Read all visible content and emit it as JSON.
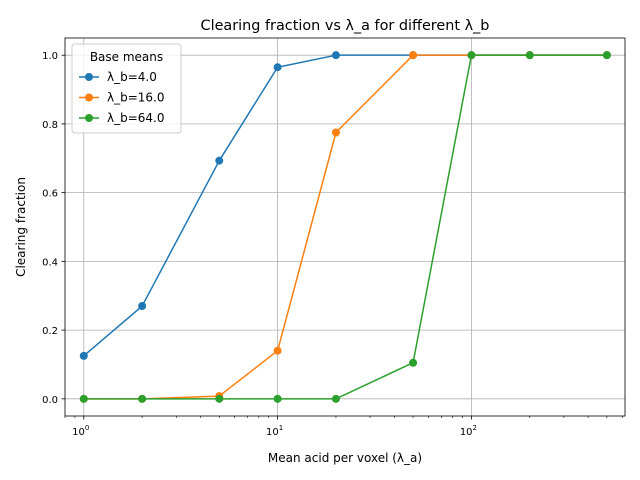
{
  "chart_data": {
    "type": "line",
    "title": "Clearing fraction vs λ_a for different λ_b",
    "xlabel": "Mean acid per voxel (λ_a)",
    "ylabel": "Clearing fraction",
    "xscale": "log",
    "xlim": [
      0.8,
      620
    ],
    "ylim": [
      -0.05,
      1.05
    ],
    "x_ticks": [
      {
        "value": 1,
        "base": "10",
        "exp": "0"
      },
      {
        "value": 10,
        "base": "10",
        "exp": "1"
      },
      {
        "value": 100,
        "base": "10",
        "exp": "2"
      }
    ],
    "y_ticks": [
      "0.0",
      "0.2",
      "0.4",
      "0.6",
      "0.8",
      "1.0"
    ],
    "grid": true,
    "legend": {
      "title": "Base means",
      "position": "top-left"
    },
    "x": [
      1,
      2,
      5,
      10,
      20,
      50,
      100,
      200,
      500
    ],
    "series": [
      {
        "name": "λ_b=4.0",
        "color": "#1f77b4",
        "values": [
          0.125,
          0.27,
          0.693,
          0.965,
          1.0,
          1.0,
          1.0,
          1.0,
          1.0
        ]
      },
      {
        "name": "λ_b=16.0",
        "color": "#ff7f0e",
        "values": [
          0.0,
          0.0,
          0.008,
          0.14,
          0.775,
          1.0,
          1.0,
          1.0,
          1.0
        ]
      },
      {
        "name": "λ_b=64.0",
        "color": "#2ca02c",
        "values": [
          0.0,
          0.0,
          0.0,
          0.0,
          0.0,
          0.105,
          1.0,
          1.0,
          1.0
        ]
      }
    ]
  }
}
